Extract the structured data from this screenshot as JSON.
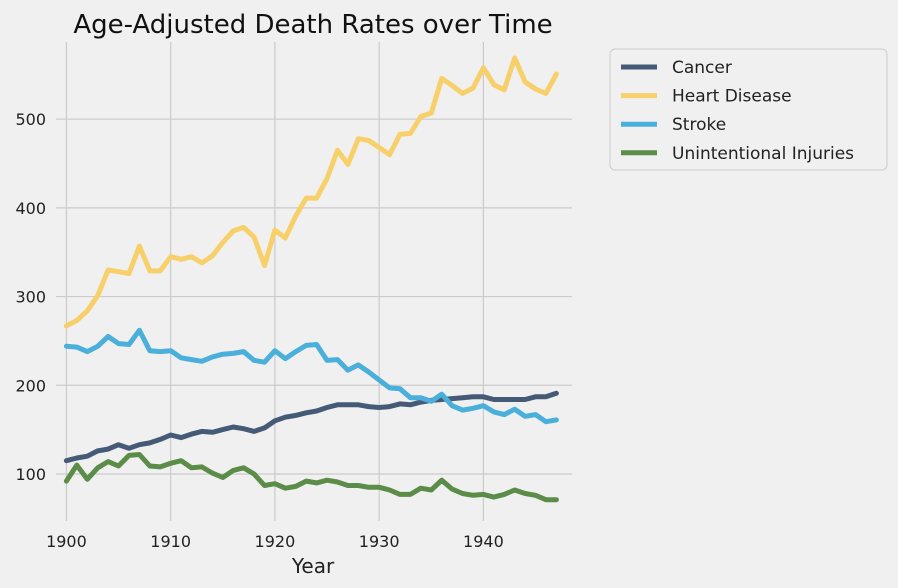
{
  "chart_data": {
    "type": "line",
    "title": "Age-Adjusted Death Rates over Time",
    "xlabel": "Year",
    "ylabel": "",
    "xlim": [
      1899.0,
      1948.5
    ],
    "ylim": [
      47,
      587
    ],
    "xticks": [
      1900,
      1910,
      1920,
      1930,
      1940
    ],
    "yticks": [
      100,
      200,
      300,
      400,
      500
    ],
    "grid": true,
    "legend_position": "outside-top-right",
    "x": [
      1900,
      1901,
      1902,
      1903,
      1904,
      1905,
      1906,
      1907,
      1908,
      1909,
      1910,
      1911,
      1912,
      1913,
      1914,
      1915,
      1916,
      1917,
      1918,
      1919,
      1920,
      1921,
      1922,
      1923,
      1924,
      1925,
      1926,
      1927,
      1928,
      1929,
      1930,
      1931,
      1932,
      1933,
      1934,
      1935,
      1936,
      1937,
      1938,
      1939,
      1940,
      1941,
      1942,
      1943,
      1944,
      1945,
      1946,
      1947
    ],
    "series": [
      {
        "name": "Cancer",
        "color": "#455a77",
        "values": [
          115,
          118,
          120,
          126,
          128,
          133,
          129,
          133,
          135,
          139,
          144,
          141,
          145,
          148,
          147,
          150,
          153,
          151,
          148,
          152,
          160,
          164,
          166,
          169,
          171,
          175,
          178,
          178,
          178,
          176,
          175,
          176,
          179,
          178,
          181,
          183,
          184,
          185,
          186,
          187,
          187,
          184,
          184,
          184,
          184,
          187,
          187,
          191
        ]
      },
      {
        "name": "Heart Disease",
        "color": "#f7d06b",
        "values": [
          267,
          273,
          284,
          301,
          330,
          328,
          326,
          357,
          329,
          329,
          345,
          342,
          345,
          338,
          346,
          361,
          374,
          378,
          367,
          335,
          375,
          366,
          391,
          411,
          411,
          433,
          465,
          449,
          478,
          476,
          468,
          460,
          483,
          484,
          503,
          507,
          546,
          538,
          529,
          535,
          558,
          539,
          533,
          569,
          542,
          534,
          529,
          551
        ]
      },
      {
        "name": "Stroke",
        "color": "#4aafdb",
        "values": [
          244,
          243,
          238,
          244,
          255,
          247,
          246,
          262,
          239,
          238,
          239,
          231,
          229,
          227,
          232,
          235,
          236,
          238,
          228,
          226,
          239,
          230,
          238,
          245,
          246,
          228,
          229,
          217,
          223,
          215,
          206,
          197,
          196,
          186,
          186,
          182,
          190,
          177,
          172,
          174,
          177,
          170,
          167,
          173,
          165,
          167,
          159,
          161
        ]
      },
      {
        "name": "Unintentional Injuries",
        "color": "#5b8c48",
        "values": [
          92,
          110,
          94,
          107,
          114,
          109,
          121,
          122,
          109,
          108,
          112,
          115,
          107,
          108,
          101,
          96,
          104,
          107,
          100,
          87,
          89,
          84,
          86,
          92,
          90,
          93,
          91,
          87,
          87,
          85,
          85,
          82,
          77,
          77,
          84,
          82,
          93,
          83,
          78,
          76,
          77,
          74,
          77,
          82,
          78,
          76,
          71,
          71
        ]
      }
    ]
  }
}
